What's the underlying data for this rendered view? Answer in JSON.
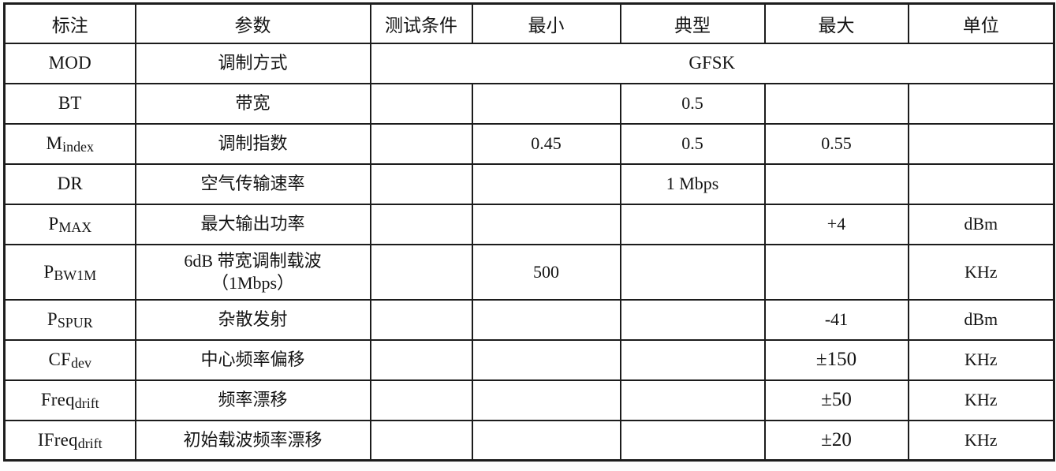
{
  "table": {
    "headers": [
      "标注",
      "参数",
      "测试条件",
      "最小",
      "典型",
      "最大",
      "单位"
    ],
    "rows": [
      {
        "label": {
          "base": "MOD",
          "sub": ""
        },
        "param": "调制方式",
        "merged": "GFSK"
      },
      {
        "label": {
          "base": "BT",
          "sub": ""
        },
        "param": "带宽",
        "cells": [
          "",
          "",
          "0.5",
          "",
          ""
        ]
      },
      {
        "label": {
          "base": "M",
          "sub": "index"
        },
        "param": "调制指数",
        "cells": [
          "",
          "0.45",
          "0.5",
          "0.55",
          ""
        ]
      },
      {
        "label": {
          "base": "DR",
          "sub": ""
        },
        "param": "空气传输速率",
        "cells": [
          "",
          "",
          "1 Mbps",
          "",
          ""
        ]
      },
      {
        "label": {
          "base": "P",
          "sub": "MAX"
        },
        "param": "最大输出功率",
        "cells": [
          "",
          "",
          "",
          "+4",
          "dBm"
        ]
      },
      {
        "label": {
          "base": "P",
          "sub": "BW1M"
        },
        "param": "6dB 带宽调制载波\n（1Mbps）",
        "cells": [
          "",
          "500",
          "",
          "",
          "KHz"
        ]
      },
      {
        "label": {
          "base": "P",
          "sub": "SPUR"
        },
        "param": "杂散发射",
        "cells": [
          "",
          "",
          "",
          "-41",
          "dBm"
        ]
      },
      {
        "label": {
          "base": "CF",
          "sub": "dev"
        },
        "param": "中心频率偏移",
        "cells": [
          "",
          "",
          "",
          "±150",
          "KHz"
        ]
      },
      {
        "label": {
          "base": "Freq",
          "sub": "drift"
        },
        "param": "频率漂移",
        "cells": [
          "",
          "",
          "",
          "±50",
          "KHz"
        ]
      },
      {
        "label": {
          "base": "IFreq",
          "sub": "drift"
        },
        "param": "初始载波频率漂移",
        "cells": [
          "",
          "",
          "",
          "±20",
          "KHz"
        ]
      }
    ],
    "colors": {
      "border": "#1c1c1c",
      "text": "#141414",
      "background": "#ffffff"
    }
  }
}
